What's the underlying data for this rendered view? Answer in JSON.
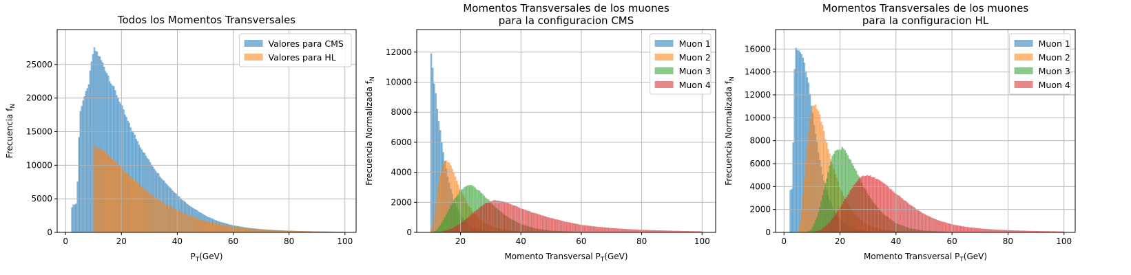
{
  "chart_data": [
    {
      "type": "bar",
      "title": [
        "Todos los Momentos Transversales"
      ],
      "xlabel": {
        "main": "P",
        "sub": "T",
        "rest": "(GeV)"
      },
      "ylabel": {
        "main": "Frecuencia f",
        "sub": "N",
        "rest": ""
      },
      "xlim": [
        -3,
        104
      ],
      "ylim": [
        0,
        30200
      ],
      "xticks": [
        0,
        20,
        40,
        60,
        80,
        100
      ],
      "yticks": [
        0,
        5000,
        10000,
        15000,
        20000,
        25000
      ],
      "grid": true,
      "legend_position": "top-right",
      "bin_width": 0.5,
      "series": [
        {
          "name": "Valores para CMS",
          "color": "#1f77b4",
          "points": [
            [
              2,
              3600
            ],
            [
              2.5,
              4000
            ],
            [
              3,
              4200
            ],
            [
              4,
              4300
            ],
            [
              5,
              17500
            ],
            [
              6,
              19500
            ],
            [
              7,
              20500
            ],
            [
              8,
              21500
            ],
            [
              9,
              24500
            ],
            [
              10,
              27300
            ],
            [
              11,
              27000
            ],
            [
              12,
              26200
            ],
            [
              13,
              25400
            ],
            [
              14,
              24500
            ],
            [
              15,
              23600
            ],
            [
              16,
              22600
            ],
            [
              17,
              21700
            ],
            [
              18,
              20800
            ],
            [
              19,
              19900
            ],
            [
              20,
              18900
            ],
            [
              21,
              17800
            ],
            [
              22,
              16800
            ],
            [
              23,
              15900
            ],
            [
              24,
              15000
            ],
            [
              25,
              14200
            ],
            [
              26,
              13400
            ],
            [
              27,
              12600
            ],
            [
              28,
              11900
            ],
            [
              30,
              10600
            ],
            [
              32,
              9400
            ],
            [
              34,
              8300
            ],
            [
              36,
              7300
            ],
            [
              38,
              6400
            ],
            [
              40,
              5600
            ],
            [
              42,
              4800
            ],
            [
              45,
              3800
            ],
            [
              50,
              2500
            ],
            [
              55,
              1600
            ],
            [
              60,
              1050
            ],
            [
              65,
              700
            ],
            [
              70,
              480
            ],
            [
              75,
              340
            ],
            [
              80,
              250
            ],
            [
              85,
              190
            ],
            [
              90,
              150
            ],
            [
              95,
              120
            ],
            [
              99.5,
              100
            ]
          ]
        },
        {
          "name": "Valores para HL",
          "color": "#ff7f0e",
          "points": [
            [
              10,
              12900
            ],
            [
              12,
              12500
            ],
            [
              14,
              12000
            ],
            [
              16,
              11300
            ],
            [
              18,
              10500
            ],
            [
              20,
              9600
            ],
            [
              22,
              8800
            ],
            [
              24,
              8000
            ],
            [
              26,
              7200
            ],
            [
              28,
              6500
            ],
            [
              30,
              5800
            ],
            [
              32,
              5200
            ],
            [
              35,
              4400
            ],
            [
              40,
              3300
            ],
            [
              45,
              2400
            ],
            [
              50,
              1700
            ],
            [
              55,
              1200
            ],
            [
              60,
              850
            ],
            [
              65,
              600
            ],
            [
              70,
              430
            ],
            [
              75,
              320
            ],
            [
              80,
              240
            ],
            [
              85,
              180
            ],
            [
              90,
              140
            ],
            [
              95,
              110
            ],
            [
              99.5,
              90
            ]
          ]
        }
      ]
    },
    {
      "type": "bar",
      "title": [
        "Momentos Transversales de los muones",
        "para la configuracion CMS"
      ],
      "xlabel": {
        "main": "Momento Transversal P",
        "sub": "T",
        "rest": "(GeV)"
      },
      "ylabel": {
        "main": "Frecuencia Normalizada f",
        "sub": "N",
        "rest": ""
      },
      "xlim": [
        5.5,
        104.5
      ],
      "ylim": [
        0,
        13500
      ],
      "xticks": [
        20,
        40,
        60,
        80,
        100
      ],
      "yticks": [
        0,
        2000,
        4000,
        6000,
        8000,
        10000,
        12000
      ],
      "grid": true,
      "legend_position": "top-right",
      "bin_width": 0.5,
      "series": [
        {
          "name": "Muon 1",
          "color": "#1f77b4",
          "points": [
            [
              10,
              12400
            ],
            [
              11,
              10500
            ],
            [
              12,
              8700
            ],
            [
              13,
              7100
            ],
            [
              14,
              5700
            ],
            [
              15,
              4500
            ],
            [
              16,
              3500
            ],
            [
              17,
              2700
            ],
            [
              18,
              2050
            ],
            [
              19,
              1550
            ],
            [
              20,
              1150
            ],
            [
              22,
              650
            ],
            [
              24,
              370
            ],
            [
              26,
              220
            ],
            [
              28,
              130
            ],
            [
              30,
              80
            ],
            [
              35,
              30
            ],
            [
              40,
              12
            ],
            [
              50,
              3
            ],
            [
              100,
              0
            ]
          ]
        },
        {
          "name": "Muon 2",
          "color": "#ff7f0e",
          "points": [
            [
              10,
              0
            ],
            [
              11,
              800
            ],
            [
              12,
              2200
            ],
            [
              13,
              3500
            ],
            [
              14,
              4400
            ],
            [
              15,
              4800
            ],
            [
              16,
              4700
            ],
            [
              17,
              4300
            ],
            [
              18,
              3800
            ],
            [
              19,
              3300
            ],
            [
              20,
              2800
            ],
            [
              22,
              2000
            ],
            [
              24,
              1400
            ],
            [
              26,
              950
            ],
            [
              28,
              650
            ],
            [
              30,
              430
            ],
            [
              33,
              240
            ],
            [
              36,
              130
            ],
            [
              40,
              60
            ],
            [
              50,
              15
            ],
            [
              100,
              0
            ]
          ]
        },
        {
          "name": "Muon 3",
          "color": "#2ca02c",
          "points": [
            [
              10,
              0
            ],
            [
              12,
              120
            ],
            [
              14,
              700
            ],
            [
              16,
              1500
            ],
            [
              18,
              2200
            ],
            [
              20,
              2800
            ],
            [
              22,
              3150
            ],
            [
              24,
              3100
            ],
            [
              26,
              2800
            ],
            [
              28,
              2400
            ],
            [
              30,
              2000
            ],
            [
              32,
              1600
            ],
            [
              35,
              1100
            ],
            [
              38,
              750
            ],
            [
              40,
              550
            ],
            [
              45,
              250
            ],
            [
              50,
              110
            ],
            [
              60,
              25
            ],
            [
              100,
              0
            ]
          ]
        },
        {
          "name": "Muon 4",
          "color": "#d62728",
          "points": [
            [
              10,
              0
            ],
            [
              14,
              60
            ],
            [
              17,
              250
            ],
            [
              20,
              600
            ],
            [
              23,
              1100
            ],
            [
              26,
              1600
            ],
            [
              28,
              1900
            ],
            [
              30,
              2100
            ],
            [
              32,
              2150
            ],
            [
              34,
              2050
            ],
            [
              37,
              1850
            ],
            [
              40,
              1600
            ],
            [
              45,
              1250
            ],
            [
              50,
              950
            ],
            [
              55,
              700
            ],
            [
              60,
              500
            ],
            [
              65,
              380
            ],
            [
              70,
              290
            ],
            [
              75,
              220
            ],
            [
              80,
              170
            ],
            [
              85,
              140
            ],
            [
              90,
              110
            ],
            [
              95,
              90
            ],
            [
              100,
              70
            ]
          ]
        }
      ]
    },
    {
      "type": "bar",
      "title": [
        "Momentos Transversales de los muones",
        "para la configuracion HL"
      ],
      "xlabel": {
        "main": "Momento Transversal P",
        "sub": "T",
        "rest": "(GeV)"
      },
      "ylabel": {
        "main": "Frecuencia Normalizada f",
        "sub": "N",
        "rest": ""
      },
      "xlim": [
        -3,
        104
      ],
      "ylim": [
        0,
        17700
      ],
      "xticks": [
        0,
        20,
        40,
        60,
        80,
        100
      ],
      "yticks": [
        0,
        2000,
        4000,
        6000,
        8000,
        10000,
        12000,
        14000,
        16000
      ],
      "grid": true,
      "legend_position": "top-right",
      "bin_width": 0.5,
      "series": [
        {
          "name": "Muon 1",
          "color": "#1f77b4",
          "points": [
            [
              2,
              3700
            ],
            [
              3,
              3900
            ],
            [
              3.5,
              12000
            ],
            [
              4,
              16300
            ],
            [
              5,
              15800
            ],
            [
              6,
              15500
            ],
            [
              7,
              15000
            ],
            [
              8,
              14000
            ],
            [
              9,
              12500
            ],
            [
              10,
              10800
            ],
            [
              11,
              9000
            ],
            [
              12,
              7400
            ],
            [
              13,
              6000
            ],
            [
              14,
              4800
            ],
            [
              15,
              3800
            ],
            [
              16,
              3000
            ],
            [
              18,
              1800
            ],
            [
              20,
              1100
            ],
            [
              22,
              650
            ],
            [
              25,
              320
            ],
            [
              30,
              100
            ],
            [
              35,
              35
            ],
            [
              40,
              12
            ],
            [
              100,
              0
            ]
          ]
        },
        {
          "name": "Muon 2",
          "color": "#ff7f0e",
          "points": [
            [
              5,
              0
            ],
            [
              6,
              1200
            ],
            [
              7,
              4000
            ],
            [
              8,
              7000
            ],
            [
              9,
              9500
            ],
            [
              10,
              11000
            ],
            [
              11,
              11200
            ],
            [
              12,
              10800
            ],
            [
              13,
              10000
            ],
            [
              14,
              9000
            ],
            [
              15,
              8000
            ],
            [
              16,
              7000
            ],
            [
              18,
              5300
            ],
            [
              20,
              3900
            ],
            [
              22,
              2800
            ],
            [
              25,
              1650
            ],
            [
              28,
              950
            ],
            [
              30,
              650
            ],
            [
              35,
              250
            ],
            [
              40,
              100
            ],
            [
              50,
              20
            ],
            [
              100,
              0
            ]
          ]
        },
        {
          "name": "Muon 3",
          "color": "#2ca02c",
          "points": [
            [
              8,
              0
            ],
            [
              10,
              300
            ],
            [
              12,
              1500
            ],
            [
              14,
              3500
            ],
            [
              16,
              5500
            ],
            [
              17,
              6500
            ],
            [
              18,
              7000
            ],
            [
              20,
              7300
            ],
            [
              21,
              7400
            ],
            [
              22,
              7000
            ],
            [
              24,
              6200
            ],
            [
              26,
              5200
            ],
            [
              28,
              4200
            ],
            [
              30,
              3300
            ],
            [
              32,
              2600
            ],
            [
              35,
              1700
            ],
            [
              40,
              800
            ],
            [
              45,
              350
            ],
            [
              50,
              150
            ],
            [
              60,
              30
            ],
            [
              100,
              0
            ]
          ]
        },
        {
          "name": "Muon 4",
          "color": "#d62728",
          "points": [
            [
              10,
              0
            ],
            [
              13,
              200
            ],
            [
              16,
              800
            ],
            [
              19,
              1800
            ],
            [
              22,
              3000
            ],
            [
              24,
              3800
            ],
            [
              26,
              4500
            ],
            [
              28,
              4900
            ],
            [
              30,
              5000
            ],
            [
              32,
              4800
            ],
            [
              35,
              4400
            ],
            [
              38,
              3800
            ],
            [
              40,
              3400
            ],
            [
              45,
              2400
            ],
            [
              50,
              1600
            ],
            [
              55,
              1050
            ],
            [
              60,
              700
            ],
            [
              65,
              480
            ],
            [
              70,
              340
            ],
            [
              75,
              250
            ],
            [
              80,
              190
            ],
            [
              85,
              150
            ],
            [
              90,
              120
            ],
            [
              95,
              100
            ],
            [
              100,
              80
            ]
          ]
        }
      ]
    }
  ]
}
